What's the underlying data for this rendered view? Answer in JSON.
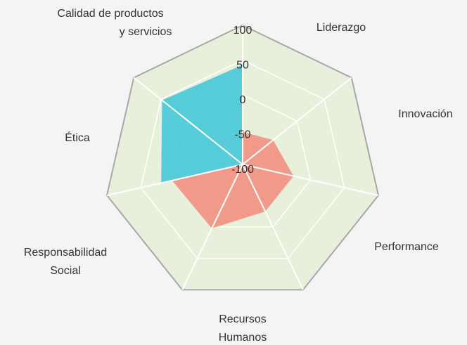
{
  "chart_data": {
    "type": "radar",
    "categories": [
      "Calidad de productos y servicios",
      "Liderazgo",
      "Innovación",
      "Performance",
      "Recursos Humanos",
      "Responsabilidad Social",
      "Ética"
    ],
    "series": [
      {
        "color": "#f28b7a",
        "values": [
          -53,
          -44,
          -25,
          -25,
          2,
          4,
          -100
        ]
      },
      {
        "color": "#3cc6d8",
        "values": [
          43,
          -100,
          -100,
          -100,
          -100,
          20,
          48
        ]
      }
    ],
    "rlim": [
      -100,
      100
    ],
    "rticks": [
      -100,
      -50,
      0,
      50,
      100
    ],
    "grid": true
  }
}
